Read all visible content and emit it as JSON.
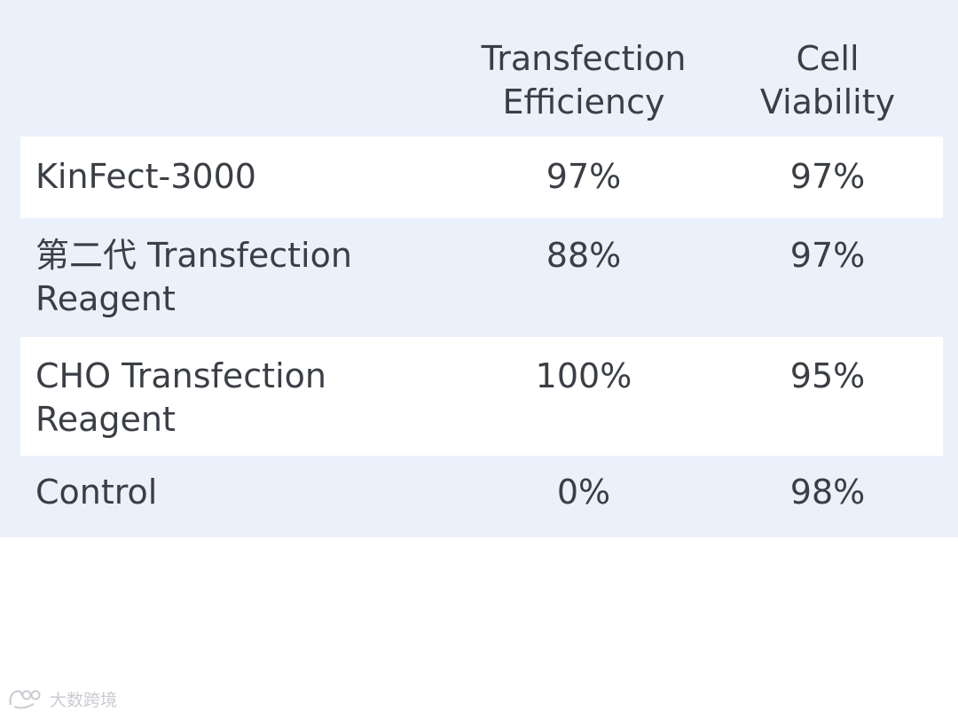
{
  "chart_data": {
    "type": "table",
    "columns": [
      "",
      "Transfection Efficiency",
      "Cell Viability"
    ],
    "rows": [
      {
        "name": "KinFect-3000",
        "efficiency": "97%",
        "viability": "97%"
      },
      {
        "name": "第二代 Transfection Reagent",
        "efficiency": "88%",
        "viability": "97%"
      },
      {
        "name": "CHO Transfection Reagent",
        "efficiency": "100%",
        "viability": "95%"
      },
      {
        "name": "Control",
        "efficiency": "0%",
        "viability": "98%"
      }
    ]
  },
  "header": {
    "efficiency_line1": "Transfection",
    "efficiency_line2": "Efficiency",
    "viability_line1": "Cell",
    "viability_line2": "Viability"
  },
  "rows": [
    {
      "name_line1": "KinFect-3000",
      "name_line2": "",
      "efficiency": "97%",
      "viability": "97%"
    },
    {
      "name_line1": "第二代 Transfection",
      "name_line2": "Reagent",
      "efficiency": "88%",
      "viability": "97%"
    },
    {
      "name_line1": "CHO Transfection",
      "name_line2": "Reagent",
      "efficiency": "100%",
      "viability": "95%"
    },
    {
      "name_line1": "Control",
      "name_line2": "",
      "efficiency": "0%",
      "viability": "98%"
    }
  ],
  "watermark": {
    "text": "大数跨境",
    "icon": "logo-mark"
  }
}
